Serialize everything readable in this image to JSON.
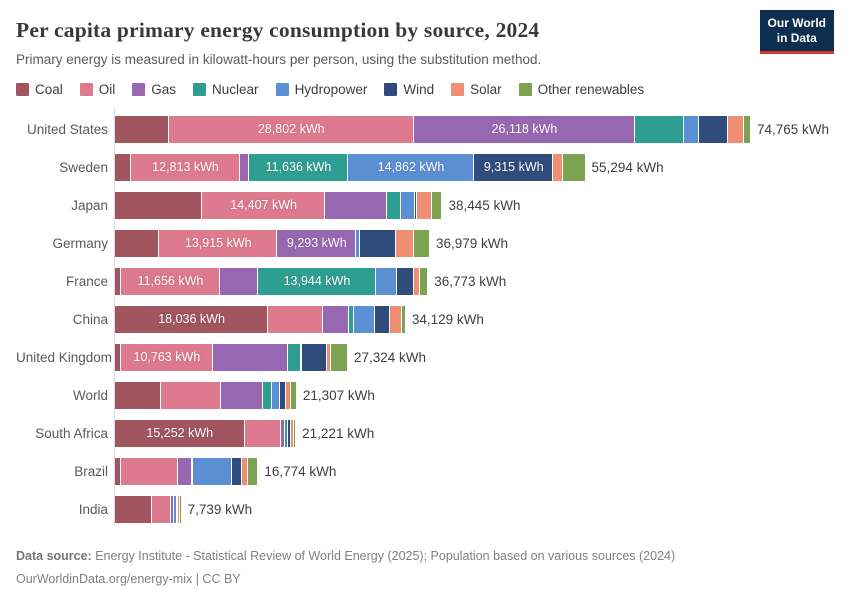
{
  "header": {
    "title": "Per capita primary energy consumption by source, 2024",
    "subtitle": "Primary energy is measured in kilowatt-hours per person, using the substitution method.",
    "logo_line1": "Our World",
    "logo_line2": "in Data",
    "logo_bg_color": "#0d2e4e",
    "logo_accent_color": "#d7362c"
  },
  "chart_data": {
    "type": "bar",
    "stacked": true,
    "orientation": "horizontal",
    "title": "Per capita primary energy consumption by source, 2024",
    "unit": "kWh per person",
    "xlim": [
      0,
      74765
    ],
    "grid": false,
    "legend_position": "top",
    "series": [
      "Coal",
      "Oil",
      "Gas",
      "Nuclear",
      "Hydropower",
      "Wind",
      "Solar",
      "Other renewables"
    ],
    "colors": [
      "#A0555F",
      "#DD7A8D",
      "#9768B1",
      "#2F9E92",
      "#5B8FD3",
      "#2F4C7D",
      "#F08E74",
      "#7CA252"
    ],
    "rows": [
      {
        "label": "United States",
        "total": 74765,
        "total_label": "74,765 kWh",
        "values": [
          6350,
          28802,
          26118,
          5750,
          1700,
          3500,
          1900,
          645
        ],
        "value_labels": [
          "",
          "28,802 kWh",
          "26,118 kWh",
          "",
          "",
          "",
          "",
          ""
        ]
      },
      {
        "label": "Sweden",
        "total": 55294,
        "total_label": "55,294 kWh",
        "values": [
          1900,
          12813,
          1080,
          11636,
          14862,
          9315,
          1100,
          2588
        ],
        "value_labels": [
          "",
          "12,813 kWh",
          "",
          "11,636 kWh",
          "14,862 kWh",
          "9,315 kWh",
          "",
          ""
        ]
      },
      {
        "label": "Japan",
        "total": 38445,
        "total_label": "38,445 kWh",
        "values": [
          10300,
          14407,
          7300,
          1650,
          1650,
          240,
          1750,
          1148
        ],
        "value_labels": [
          "",
          "14,407 kWh",
          "",
          "",
          "",
          "",
          "",
          ""
        ]
      },
      {
        "label": "Germany",
        "total": 36979,
        "total_label": "36,979 kWh",
        "values": [
          5200,
          13915,
          9293,
          0,
          390,
          4250,
          2150,
          1781
        ],
        "value_labels": [
          "",
          "13,915 kWh",
          "9,293 kWh",
          "",
          "",
          "",
          "",
          ""
        ]
      },
      {
        "label": "France",
        "total": 36773,
        "total_label": "36,773 kWh",
        "values": [
          700,
          11656,
          4450,
          13944,
          2500,
          1900,
          750,
          873
        ],
        "value_labels": [
          "",
          "11,656 kWh",
          "",
          "13,944 kWh",
          "",
          "",
          "",
          ""
        ]
      },
      {
        "label": "China",
        "total": 34129,
        "total_label": "34,129 kWh",
        "values": [
          18036,
          6440,
          3025,
          634,
          2440,
          1805,
          1366,
          383
        ],
        "value_labels": [
          "18,036 kWh",
          "",
          "",
          "",
          "",
          "",
          "",
          ""
        ]
      },
      {
        "label": "United Kingdom",
        "total": 27324,
        "total_label": "27,324 kWh",
        "values": [
          730,
          10763,
          8900,
          1460,
          195,
          2930,
          490,
          1856
        ],
        "value_labels": [
          "",
          "10,763 kWh",
          "",
          "",
          "",
          "",
          "",
          ""
        ]
      },
      {
        "label": "World",
        "total": 21307,
        "total_label": "21,307 kWh",
        "values": [
          5463,
          6980,
          5026,
          975,
          975,
          683,
          683,
          522
        ],
        "value_labels": [
          "",
          "",
          "",
          "",
          "",
          "",
          "",
          ""
        ]
      },
      {
        "label": "South Africa",
        "total": 21221,
        "total_label": "21,221 kWh",
        "values": [
          15252,
          4295,
          430,
          380,
          60,
          330,
          370,
          104
        ],
        "value_labels": [
          "15,252 kWh",
          "",
          "",
          "",
          "",
          "",
          "",
          ""
        ]
      },
      {
        "label": "Brazil",
        "total": 16774,
        "total_label": "16,774 kWh",
        "values": [
          730,
          6700,
          1600,
          120,
          4650,
          1130,
          750,
          1094
        ],
        "value_labels": [
          "",
          "",
          "",
          "",
          "",
          "",
          "",
          ""
        ]
      },
      {
        "label": "India",
        "total": 7739,
        "total_label": "7,739 kWh",
        "values": [
          4319,
          2272,
          318,
          90,
          260,
          200,
          230,
          50
        ],
        "value_labels": [
          "",
          "",
          "",
          "",
          "",
          "",
          "",
          ""
        ]
      }
    ]
  },
  "footer": {
    "source_bold": "Data source:",
    "source_rest": " Energy Institute - Statistical Review of World Energy (2025); Population based on various sources (2024)",
    "attribution": "OurWorldinData.org/energy-mix | CC BY"
  }
}
